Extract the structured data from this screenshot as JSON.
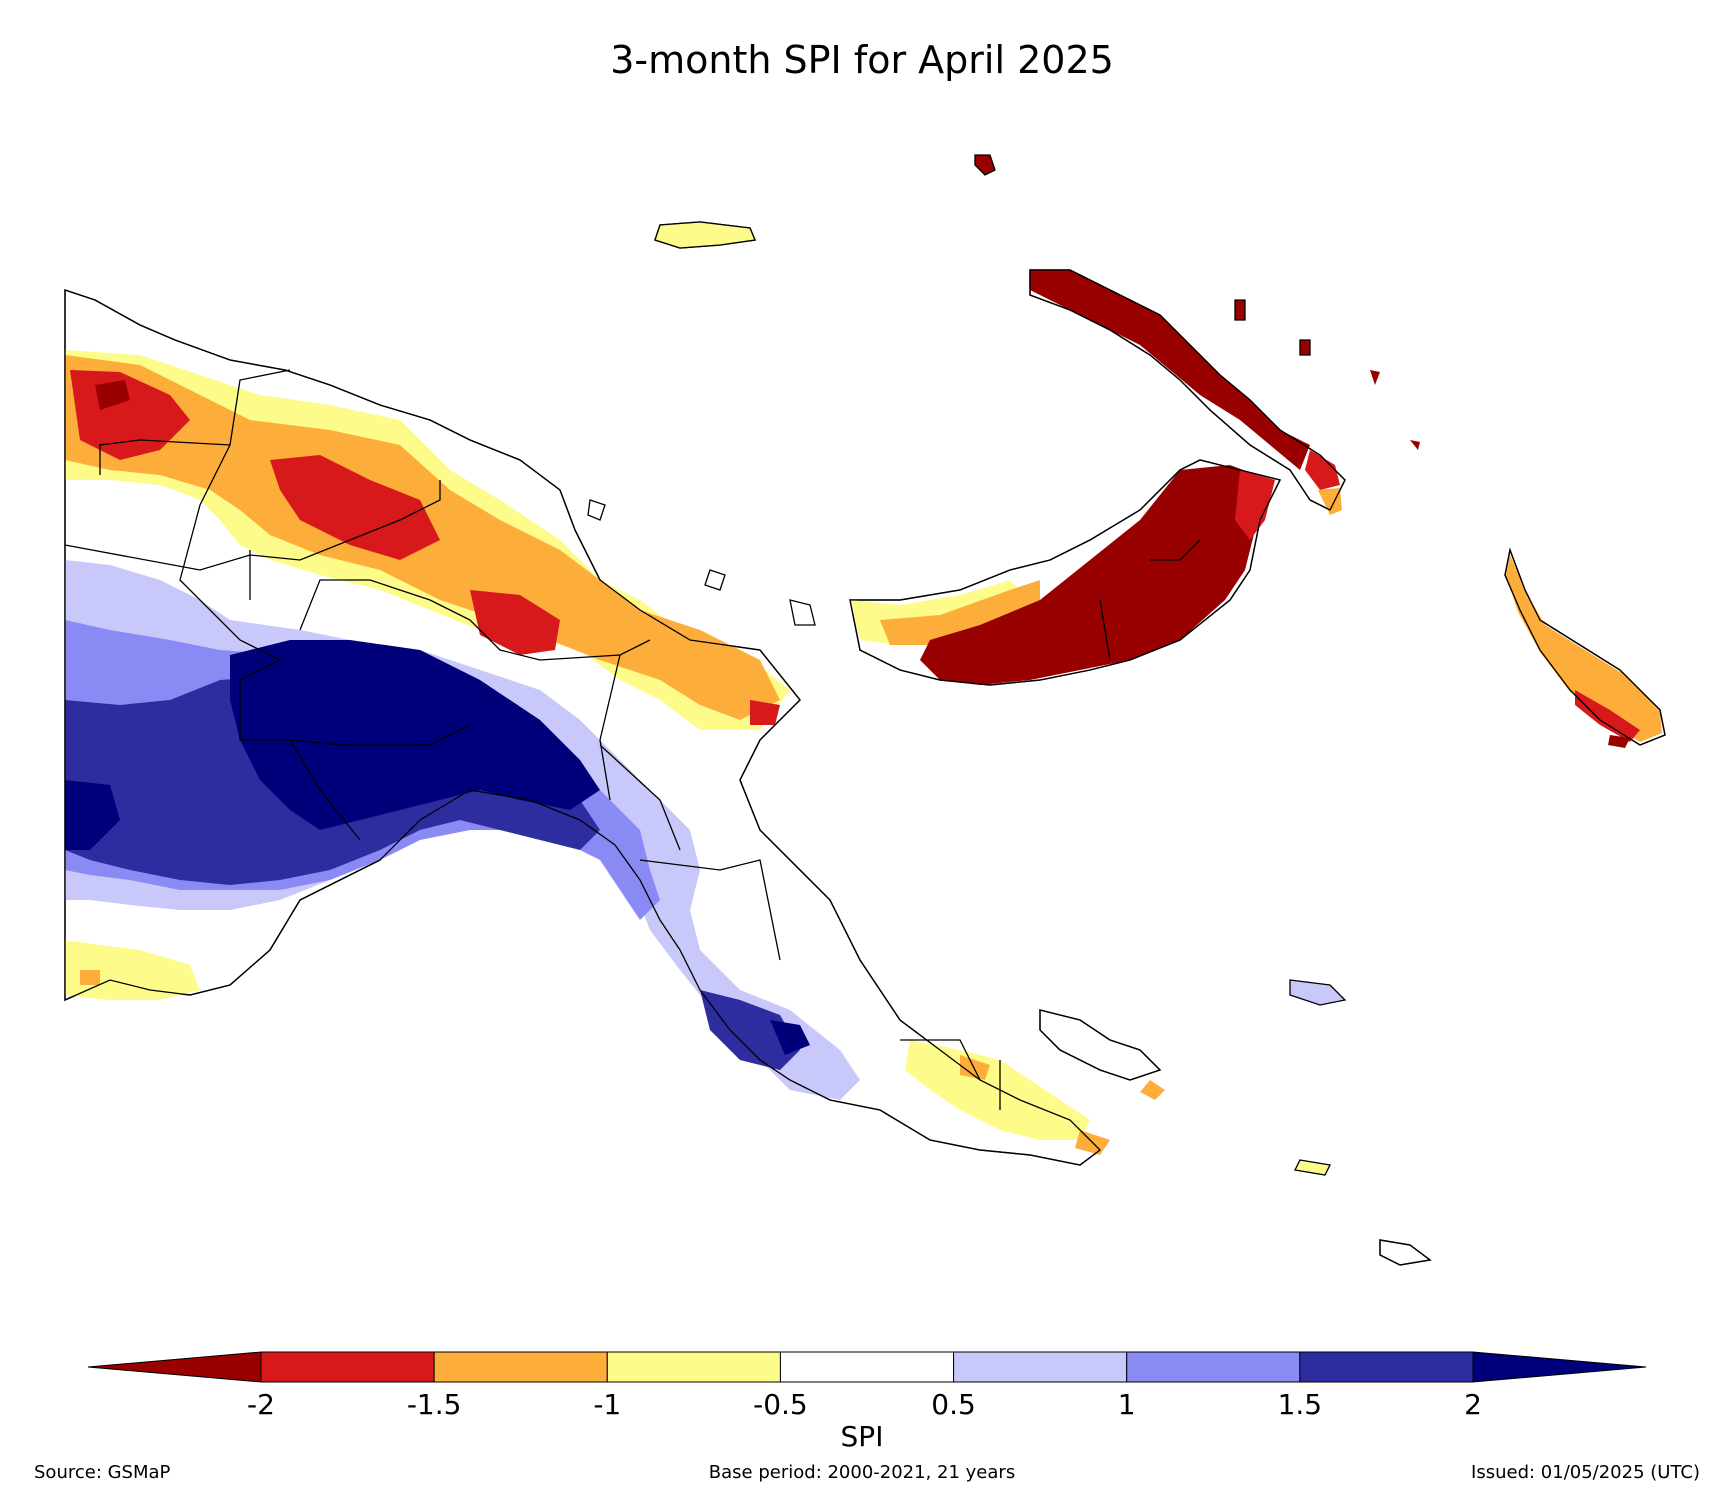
{
  "title": "3-month SPI for April 2025",
  "colorbar": {
    "label": "SPI",
    "ticks": [
      "-2",
      "-1.5",
      "-1",
      "-0.5",
      "0.5",
      "1",
      "1.5",
      "2"
    ],
    "bins": [
      {
        "range": "< -2",
        "color": "#990000"
      },
      {
        "range": "-2 to -1.5",
        "color": "#d7191c"
      },
      {
        "range": "-1.5 to -1",
        "color": "#fdae3a"
      },
      {
        "range": "-1 to -0.5",
        "color": "#fdfb8a"
      },
      {
        "range": "-0.5 to 0.5",
        "color": "#ffffff"
      },
      {
        "range": "0.5 to 1",
        "color": "#c8c8fa"
      },
      {
        "range": "1 to 1.5",
        "color": "#8a8af5"
      },
      {
        "range": "1.5 to 2",
        "color": "#2d2da0"
      },
      {
        "range": "> 2",
        "color": "#00007a"
      }
    ]
  },
  "footer": {
    "source": "Source: GSMaP",
    "base_period": "Base period: 2000-2021, 21 years",
    "issued": "Issued: 01/05/2025 (UTC)"
  }
}
